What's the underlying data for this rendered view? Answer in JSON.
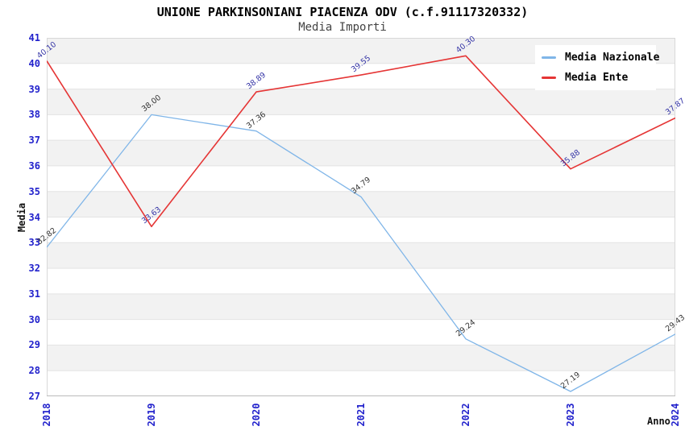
{
  "chart_data": {
    "type": "line",
    "title": "UNIONE PARKINSONIANI PIACENZA ODV (c.f.91117320332)",
    "subtitle": "Media Importi",
    "xlabel": "Anno",
    "ylabel": "Media",
    "x_categories": [
      "2018",
      "2019",
      "2020",
      "2021",
      "2022",
      "2023",
      "2024"
    ],
    "series": [
      {
        "name": "Media Nazionale",
        "color": "#7FB5E8",
        "label_color": "#333333",
        "values": [
          32.82,
          38.0,
          37.36,
          34.79,
          29.24,
          27.19,
          29.43
        ],
        "labels": [
          "32.82",
          "38.00",
          "37.36",
          "34.79",
          "29.24",
          "27.19",
          "29.43"
        ]
      },
      {
        "name": "Media Ente",
        "color": "#E53535",
        "label_color": "#3434A6",
        "values": [
          40.1,
          33.63,
          38.89,
          39.55,
          40.3,
          35.88,
          37.87
        ],
        "labels": [
          "40.10",
          "33.63",
          "38.89",
          "39.55",
          "40.30",
          "35.88",
          "37.87"
        ]
      }
    ],
    "ylim": [
      27,
      41
    ],
    "ytick_step": 1,
    "yticks": [
      27,
      28,
      29,
      30,
      31,
      32,
      33,
      34,
      35,
      36,
      37,
      38,
      39,
      40,
      41
    ],
    "legend_position": "top-right",
    "grid": "horizontal-stripes"
  },
  "colors": {
    "axis_tick_label": "#2222CC",
    "stripe": "#F2F2F2",
    "gridline": "#E3E3E3",
    "plot_border": "#D8D8D8",
    "axis_line": "#BBBBBB",
    "title_text": "#000000",
    "subtitle_text": "#444444",
    "legend_text": "#000000",
    "legend_bg": "#FFFFFF"
  }
}
